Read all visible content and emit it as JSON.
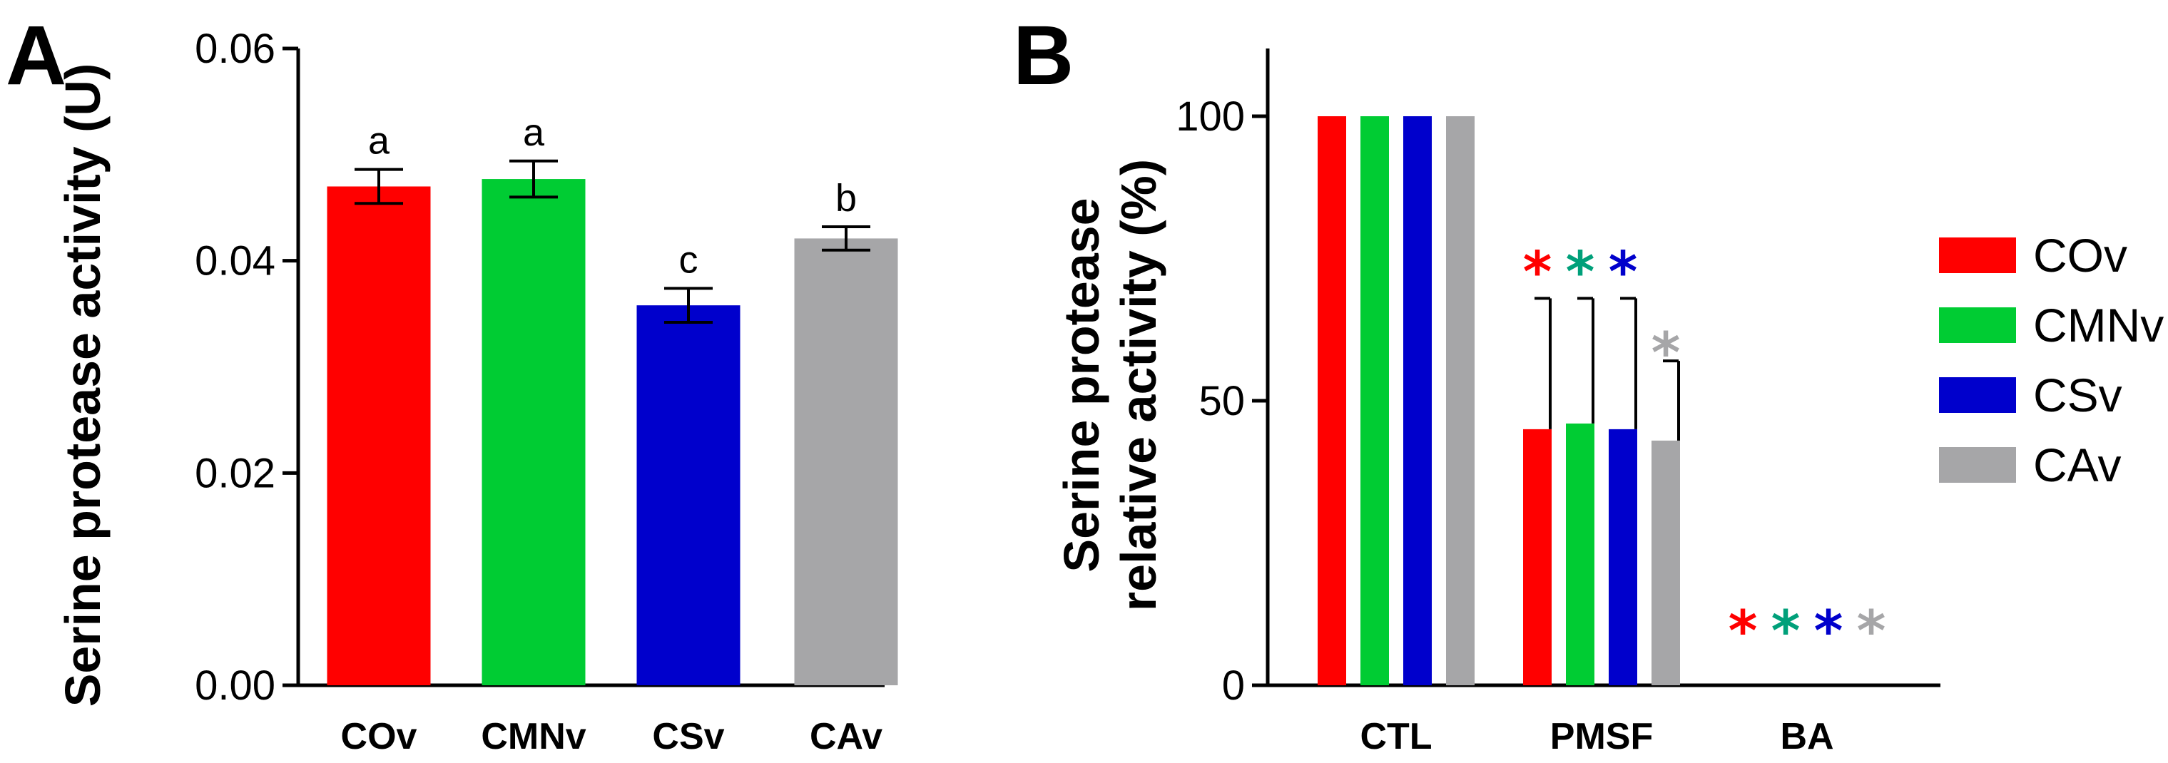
{
  "colors": {
    "COv": "#ff0000",
    "CMNv": "#00cc33",
    "CSv": "#0000cc",
    "CAv": "#a6a6a8"
  },
  "chart_data": [
    {
      "panel": "A",
      "type": "bar",
      "ylabel": "Serine protease activity (U)",
      "ylim": [
        0,
        0.06
      ],
      "y_ticks": [
        "0.00",
        "0.02",
        "0.04",
        "0.06"
      ],
      "y_tick_values": [
        0,
        0.02,
        0.04,
        0.06
      ],
      "categories": [
        "COv",
        "CMNv",
        "CSv",
        "CAv"
      ],
      "values": [
        0.047,
        0.0477,
        0.0358,
        0.0421
      ],
      "errors": [
        0.0016,
        0.0017,
        0.0016,
        0.0011
      ],
      "significance": [
        "a",
        "a",
        "c",
        "b"
      ],
      "colors": [
        "#ff0000",
        "#00cc33",
        "#0000cc",
        "#a6a6a8"
      ]
    },
    {
      "panel": "B",
      "type": "bar",
      "ylabel_line1": "Serine protease",
      "ylabel_line2": "relative activity (%)",
      "ylim": [
        0,
        110
      ],
      "y_ticks": [
        "0",
        "50",
        "100"
      ],
      "y_tick_values": [
        0,
        50,
        100
      ],
      "categories": [
        "CTL",
        "PMSF",
        "BA"
      ],
      "series": [
        {
          "name": "COv",
          "values": [
            100,
            45,
            0
          ],
          "errors": [
            0,
            23,
            0
          ],
          "stars": [
            false,
            true,
            true
          ],
          "color": "#ff0000",
          "star_color": "#ff0000"
        },
        {
          "name": "CMNv",
          "values": [
            100,
            46,
            0
          ],
          "errors": [
            0,
            22,
            0
          ],
          "stars": [
            false,
            true,
            true
          ],
          "color": "#00cc33",
          "star_color": "#00a07a"
        },
        {
          "name": "CSv",
          "values": [
            100,
            45,
            0
          ],
          "errors": [
            0,
            23,
            0
          ],
          "stars": [
            false,
            true,
            true
          ],
          "color": "#0000cc",
          "star_color": "#0000cc"
        },
        {
          "name": "CAv",
          "values": [
            100,
            43,
            0
          ],
          "errors": [
            0,
            14,
            0
          ],
          "stars": [
            false,
            true,
            true
          ],
          "color": "#a6a6a8",
          "star_color": "#a6a6a8"
        }
      ],
      "star_symbol": "*",
      "legend": {
        "placement": "right",
        "entries": [
          "COv",
          "CMNv",
          "CSv",
          "CAv"
        ]
      }
    }
  ]
}
